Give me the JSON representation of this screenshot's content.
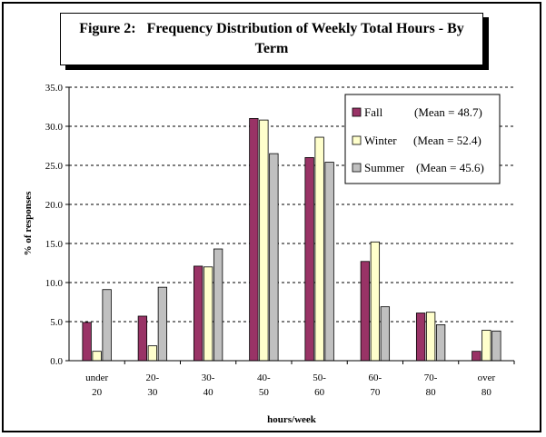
{
  "title": "Figure 2:   Frequency Distribution of Weekly Total Hours - By Term",
  "chart_data": {
    "type": "bar",
    "title": "Figure 2:   Frequency Distribution of Weekly Total Hours - By Term",
    "xlabel": "hours/week",
    "ylabel": "% of responses",
    "ylim": [
      0,
      35
    ],
    "yticks": [
      "0.0",
      "5.0",
      "10.0",
      "15.0",
      "20.0",
      "25.0",
      "30.0",
      "35.0"
    ],
    "grid": true,
    "legend_position": "top-right",
    "categories": [
      [
        "under",
        "20"
      ],
      [
        "20-",
        "30"
      ],
      [
        "30-",
        "40"
      ],
      [
        "40-",
        "50"
      ],
      [
        "50-",
        "60"
      ],
      [
        "60-",
        "70"
      ],
      [
        "70-",
        "80"
      ],
      [
        "over",
        "80"
      ]
    ],
    "series": [
      {
        "name": "Fall",
        "mean_label": "(Mean = 48.7)",
        "color": "#993366",
        "values": [
          4.9,
          5.7,
          12.1,
          31.0,
          26.0,
          12.7,
          6.1,
          1.2
        ]
      },
      {
        "name": "Winter",
        "mean_label": "(Mean = 52.4)",
        "color": "#FFFFCC",
        "values": [
          1.2,
          1.9,
          12.0,
          30.8,
          28.6,
          15.2,
          6.2,
          3.9
        ]
      },
      {
        "name": "Summer",
        "mean_label": "(Mean = 45.6)",
        "color": "#C0C0C0",
        "values": [
          9.1,
          9.4,
          14.3,
          26.5,
          25.4,
          6.9,
          4.6,
          3.8
        ]
      }
    ]
  }
}
